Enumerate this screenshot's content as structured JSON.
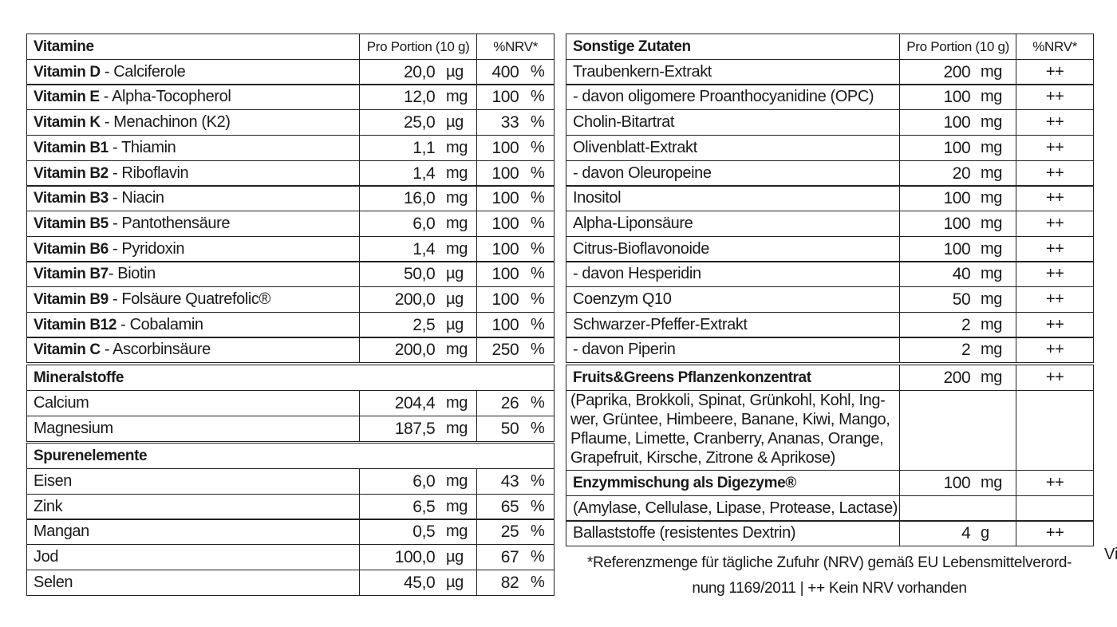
{
  "left_table": {
    "sections": [
      {
        "header": {
          "title": "Vitamine",
          "amount": "Pro Portion (10 g)",
          "nrv": "%NRV*"
        },
        "rows": [
          {
            "bold": "Vitamin D",
            "name": " - Calciferole",
            "amount": "20,0",
            "unit": "µg",
            "nrv": "400",
            "nrv_unit": "%"
          },
          {
            "bold": "Vitamin E",
            "name": " - Alpha-Tocopherol",
            "amount": "12,0",
            "unit": "mg",
            "nrv": "100",
            "nrv_unit": "%"
          },
          {
            "bold": "Vitamin K",
            "name": " - Menachinon (K2)",
            "amount": "25,0",
            "unit": "µg",
            "nrv": "33",
            "nrv_unit": "%"
          },
          {
            "bold": "Vitamin B1",
            "name": " - Thiamin",
            "amount": "1,1",
            "unit": "mg",
            "nrv": "100",
            "nrv_unit": "%"
          },
          {
            "bold": "Vitamin B2",
            "name": " - Riboflavin",
            "amount": "1,4",
            "unit": "mg",
            "nrv": "100",
            "nrv_unit": "%"
          },
          {
            "bold": "Vitamin B3",
            "name": " - Niacin",
            "amount": "16,0",
            "unit": "mg",
            "nrv": "100",
            "nrv_unit": "%"
          },
          {
            "bold": "Vitamin B5",
            "name": " - Pantothensäure",
            "amount": "6,0",
            "unit": "mg",
            "nrv": "100",
            "nrv_unit": "%"
          },
          {
            "bold": "Vitamin B6",
            "name": " - Pyridoxin",
            "amount": "1,4",
            "unit": "mg",
            "nrv": "100",
            "nrv_unit": "%"
          },
          {
            "bold": "Vitamin B7",
            "name": "- Biotin",
            "amount": "50,0",
            "unit": "µg",
            "nrv": "100",
            "nrv_unit": "%"
          },
          {
            "bold": "Vitamin B9",
            "name": " - Folsäure Quatrefolic®",
            "amount": "200,0",
            "unit": "µg",
            "nrv": "100",
            "nrv_unit": "%"
          },
          {
            "bold": "Vitamin B12",
            "name": " - Cobalamin",
            "amount": "2,5",
            "unit": "µg",
            "nrv": "100",
            "nrv_unit": "%"
          },
          {
            "bold": "Vitamin C",
            "name": " - Ascorbinsäure",
            "amount": "200,0",
            "unit": "mg",
            "nrv": "250",
            "nrv_unit": "%"
          }
        ]
      },
      {
        "title": "Mineralstoffe",
        "rows": [
          {
            "name": "Calcium",
            "amount": "204,4",
            "unit": "mg",
            "nrv": "26",
            "nrv_unit": "%"
          },
          {
            "name": "Magnesium",
            "amount": "187,5",
            "unit": "mg",
            "nrv": "50",
            "nrv_unit": "%"
          }
        ]
      },
      {
        "title": "Spurenelemente",
        "rows": [
          {
            "name": "Eisen",
            "amount": "6,0",
            "unit": "mg",
            "nrv": "43",
            "nrv_unit": "%"
          },
          {
            "name": "Zink",
            "amount": "6,5",
            "unit": "mg",
            "nrv": "65",
            "nrv_unit": "%"
          },
          {
            "name": "Mangan",
            "amount": "0,5",
            "unit": "mg",
            "nrv": "25",
            "nrv_unit": "%"
          },
          {
            "name": "Jod",
            "amount": "100,0",
            "unit": "µg",
            "nrv": "67",
            "nrv_unit": "%"
          },
          {
            "name": "Selen",
            "amount": "45,0",
            "unit": "µg",
            "nrv": "82",
            "nrv_unit": "%"
          }
        ]
      }
    ]
  },
  "right_table": {
    "sections": [
      {
        "header": {
          "title": "Sonstige Zutaten",
          "amount": "Pro Portion (10 g)",
          "nrv": "%NRV*"
        },
        "rows": [
          {
            "name": "Traubenkern-Extrakt",
            "amount": "200",
            "unit": "mg",
            "nrv": "++"
          },
          {
            "name": "- davon oligomere Proanthocyanidine (OPC)",
            "amount": "100",
            "unit": "mg",
            "nrv": "++"
          },
          {
            "name": "Cholin-Bitartrat",
            "amount": "100",
            "unit": "mg",
            "nrv": "++"
          },
          {
            "name": "Olivenblatt-Extrakt",
            "amount": "100",
            "unit": "mg",
            "nrv": "++"
          },
          {
            "name": "- davon Oleuropeine",
            "amount": "20",
            "unit": "mg",
            "nrv": "++"
          },
          {
            "name": "Inositol",
            "amount": "100",
            "unit": "mg",
            "nrv": "++"
          },
          {
            "name": "Alpha-Liponsäure",
            "amount": "100",
            "unit": "mg",
            "nrv": "++"
          },
          {
            "name": "Citrus-Bioflavonoide",
            "amount": "100",
            "unit": "mg",
            "nrv": "++"
          },
          {
            "name": "- davon Hesperidin",
            "amount": "40",
            "unit": "mg",
            "nrv": "++"
          },
          {
            "name": "Coenzym Q10",
            "amount": "50",
            "unit": "mg",
            "nrv": "++"
          },
          {
            "name": "Schwarzer-Pfeffer-Extrakt",
            "amount": "2",
            "unit": "mg",
            "nrv": "++"
          },
          {
            "name": "- davon Piperin",
            "amount": "2",
            "unit": "mg",
            "nrv": "++"
          }
        ]
      },
      {
        "rows": [
          {
            "heading": "Fruits&Greens Pflanzenkonzentrat",
            "amount": "200",
            "unit": "mg",
            "nrv": "++"
          },
          {
            "lines": [
              "(Paprika, Brokkoli, Spinat, Grünkohl, Kohl, Ing-",
              "wer, Grüntee, Himbeere, Banane, Kiwi, Mango,",
              "Pflaume, Limette, Cranberry, Ananas, Orange,",
              "Grapefruit, Kirsche, Zitrone & Aprikose)"
            ]
          },
          {
            "heading": "Enzymmischung als Digezyme®",
            "amount": "100",
            "unit": "mg",
            "nrv": "++"
          },
          {
            "name": "(Amylase, Cellulase, Lipase, Protease, Lactase)"
          },
          {
            "name": "Ballaststoffe (resistentes Dextrin)",
            "amount": "4",
            "unit": "g",
            "nrv": "++"
          }
        ]
      }
    ]
  },
  "footnote": [
    "*Referenzmenge für tägliche Zufuhr (NRV) gemäß EU Lebensmittelverord-",
    "nung 1169/2011 | ++ Kein NRV vorhanden"
  ],
  "side_text": "Vi"
}
